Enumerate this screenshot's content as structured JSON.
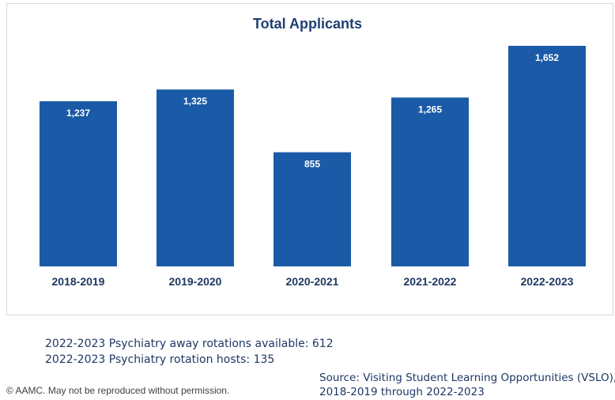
{
  "chart_data": {
    "type": "bar",
    "title": "Total Applicants",
    "categories": [
      "2018-2019",
      "2019-2020",
      "2020-2021",
      "2021-2022",
      "2022-2023"
    ],
    "values": [
      1237,
      1325,
      855,
      1265,
      1652
    ],
    "value_labels": [
      "1,237",
      "1,325",
      "855",
      "1,265",
      "1,652"
    ],
    "xlabel": "",
    "ylabel": "",
    "ylim": [
      0,
      1652
    ],
    "grid": false,
    "bar_color": "#1b5aa6",
    "value_label_color": "#ffffff",
    "category_label_color": "#1f3864"
  },
  "notes": {
    "line1": "2022-2023 Psychiatry away rotations available: 612",
    "line2": "2022-2023 Psychiatry rotation hosts: 135"
  },
  "footer": {
    "copyright": "© AAMC. May not be reproduced without permission.",
    "source_line1": "Source: Visiting Student Learning Opportunities (VSLO),",
    "source_line2": "2018-2019 through 2022-2023"
  }
}
